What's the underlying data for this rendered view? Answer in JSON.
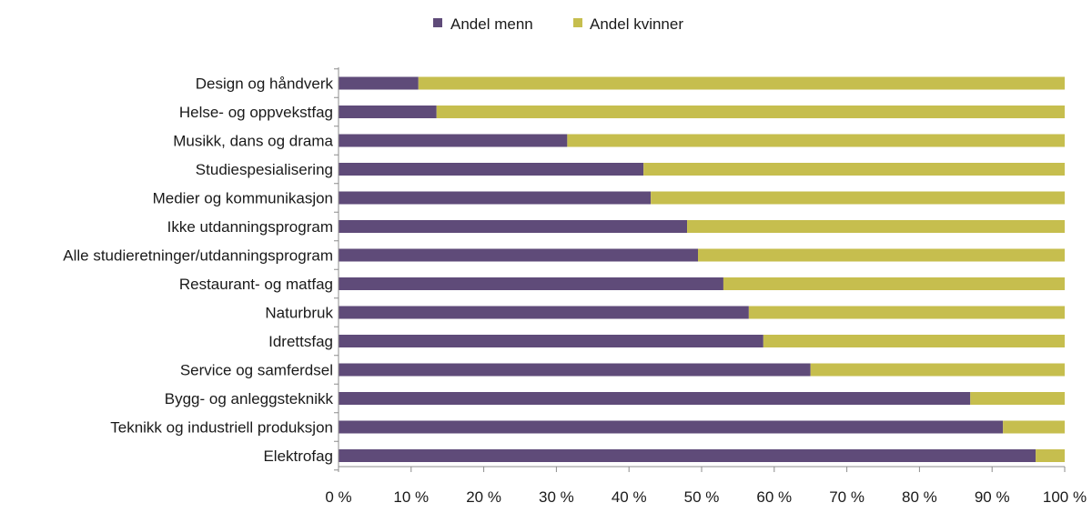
{
  "chart_data": {
    "type": "bar",
    "orientation": "horizontal",
    "stacked": "percent",
    "categories": [
      "Design og håndverk",
      "Helse- og oppvekstfag",
      "Musikk, dans og drama",
      "Studiespesialisering",
      "Medier og kommunikasjon",
      "Ikke utdanningsprogram",
      "Alle studieretninger/utdanningsprogram",
      "Restaurant- og matfag",
      "Naturbruk",
      "Idrettsfag",
      "Service og samferdsel",
      "Bygg- og anleggsteknikk",
      "Teknikk og industriell produksjon",
      "Elektrofag"
    ],
    "series": [
      {
        "name": "Andel menn",
        "color": "#5f4b79",
        "values": [
          11,
          13.5,
          31.5,
          42,
          43,
          48,
          49.5,
          53,
          56.5,
          58.5,
          65,
          87,
          91.5,
          96
        ]
      },
      {
        "name": "Andel kvinner",
        "color": "#c6be4e",
        "values": [
          89,
          86.5,
          68.5,
          58,
          57,
          52,
          50.5,
          47,
          43.5,
          41.5,
          35,
          13,
          8.5,
          4
        ]
      }
    ],
    "xlim": [
      0,
      100
    ],
    "x_ticks": [
      "0 %",
      "10 %",
      "20 %",
      "30 %",
      "40 %",
      "50 %",
      "60 %",
      "70 %",
      "80 %",
      "90 %",
      "100 %"
    ],
    "legend_position": "top",
    "grid": false
  }
}
